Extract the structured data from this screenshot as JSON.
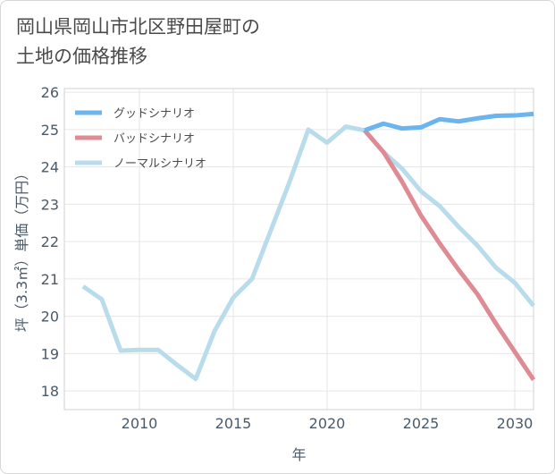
{
  "title": "岡山県岡山市北区野田屋町の\n土地の価格推移",
  "chart_data": {
    "type": "line",
    "title": "岡山県岡山市北区野田屋町の\n土地の価格推移",
    "xlabel": "年",
    "ylabel": "坪（3.3㎡）単価（万円）",
    "xlim": [
      2006,
      2031
    ],
    "ylim": [
      17.5,
      26.1
    ],
    "xticks": [
      2010,
      2015,
      2020,
      2025,
      2030
    ],
    "yticks": [
      18,
      19,
      20,
      21,
      22,
      23,
      24,
      25,
      26
    ],
    "grid": true,
    "legend_position": "top-left",
    "series": [
      {
        "name": "グッドシナリオ",
        "color": "#6cb4ee",
        "x": [
          2022,
          2023,
          2024,
          2025,
          2026,
          2027,
          2028,
          2029,
          2030,
          2031
        ],
        "y": [
          24.98,
          25.16,
          25.03,
          25.06,
          25.28,
          25.22,
          25.3,
          25.37,
          25.38,
          25.42
        ]
      },
      {
        "name": "バッドシナリオ",
        "color": "#de8b93",
        "x": [
          2022,
          2023,
          2024,
          2025,
          2026,
          2027,
          2028,
          2029,
          2030,
          2031
        ],
        "y": [
          24.98,
          24.4,
          23.6,
          22.7,
          21.95,
          21.25,
          20.6,
          19.8,
          19.05,
          18.3
        ]
      },
      {
        "name": "ノーマルシナリオ",
        "color": "#b9dcec",
        "x": [
          2007,
          2008,
          2009,
          2010,
          2011,
          2012,
          2013,
          2014,
          2015,
          2016,
          2017,
          2018,
          2019,
          2020,
          2021,
          2022,
          2023,
          2024,
          2025,
          2026,
          2027,
          2028,
          2029,
          2030,
          2031
        ],
        "y": [
          20.8,
          20.45,
          19.08,
          19.1,
          19.1,
          18.7,
          18.32,
          19.6,
          20.5,
          21.0,
          22.3,
          23.6,
          25.0,
          24.65,
          25.08,
          24.98,
          24.4,
          23.95,
          23.35,
          22.95,
          22.4,
          21.9,
          21.3,
          20.9,
          20.28
        ]
      }
    ]
  }
}
